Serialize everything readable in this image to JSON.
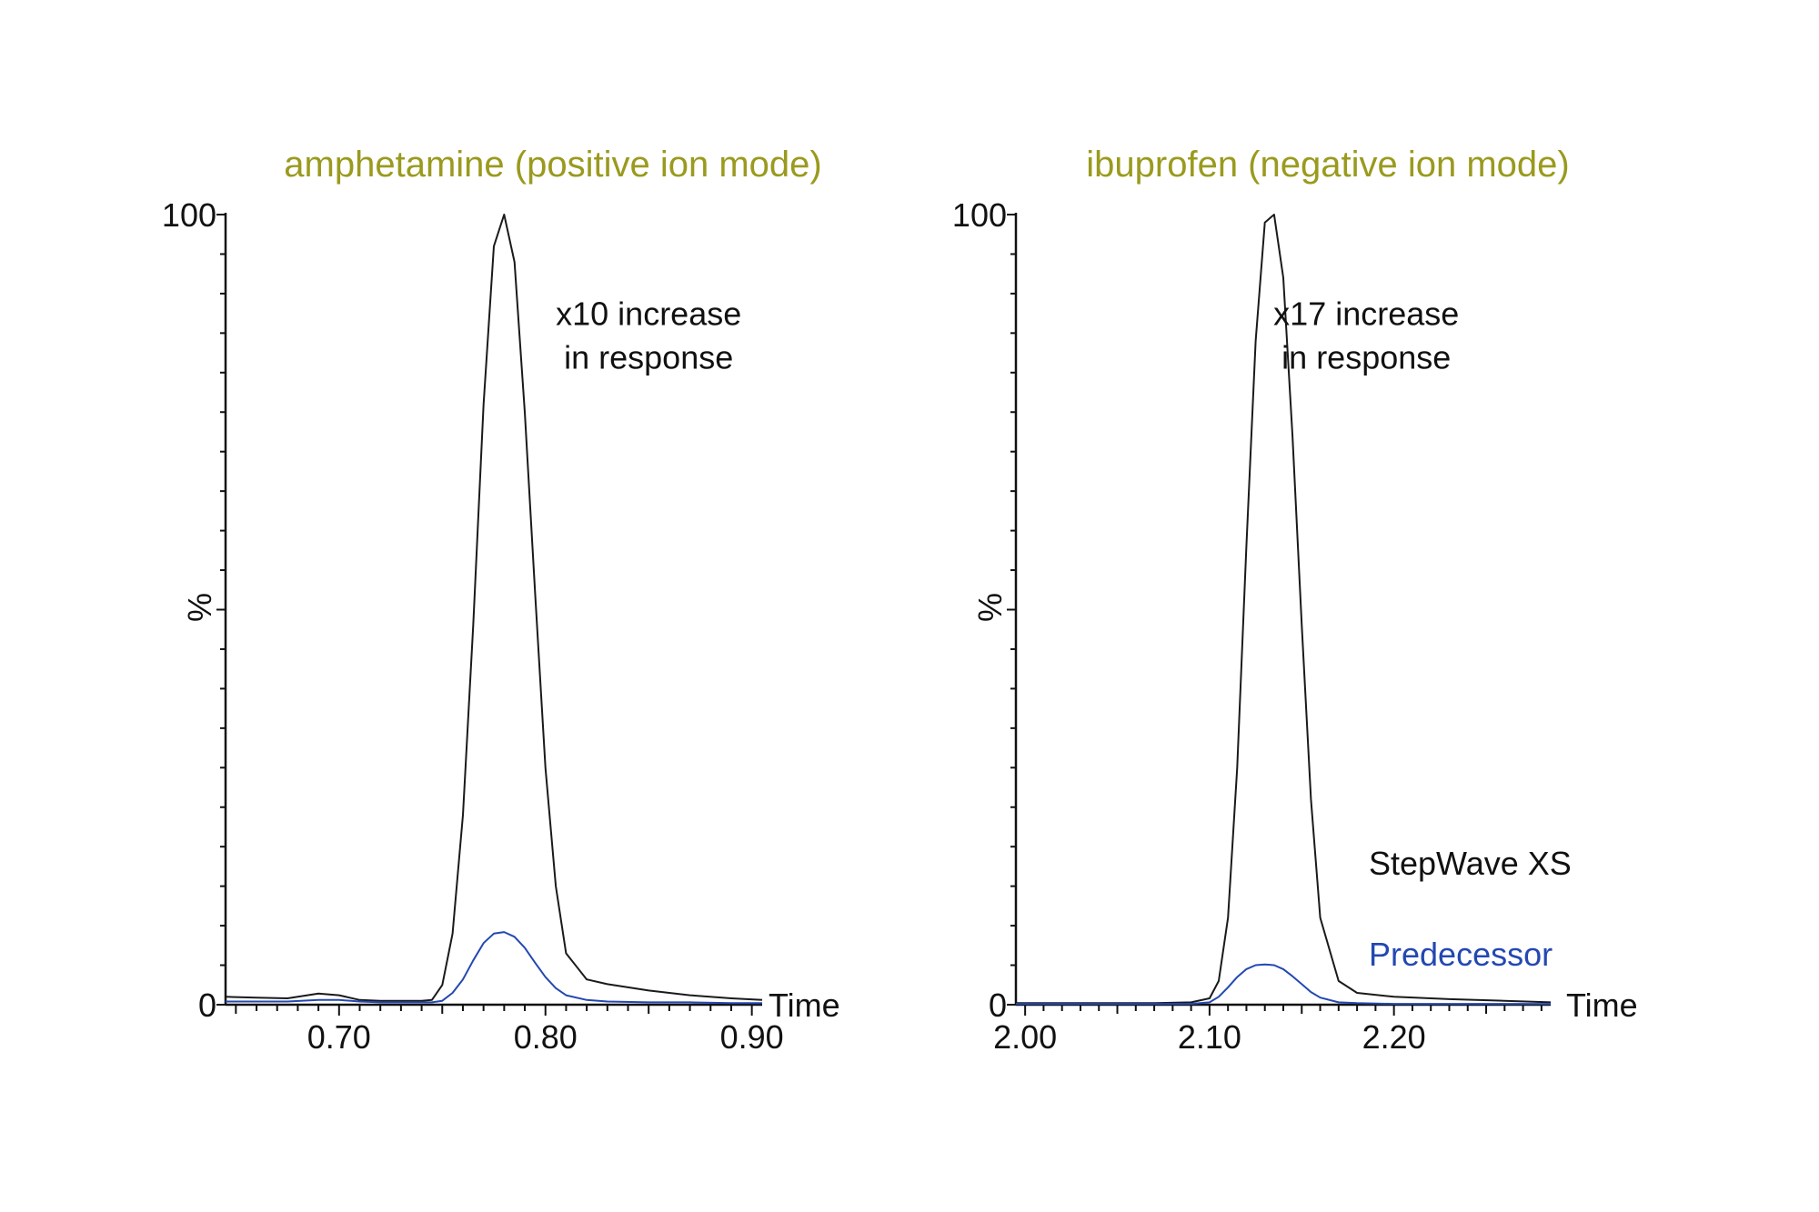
{
  "chart_data": [
    {
      "type": "line",
      "title": "amphetamine (positive ion mode)",
      "xlabel": "Time",
      "ylabel": "%",
      "xlim": [
        0.645,
        0.905
      ],
      "ylim": [
        0,
        100
      ],
      "xticks": [
        0.7,
        0.8,
        0.9
      ],
      "xtick_labels": [
        "0.70",
        "0.80",
        "0.90"
      ],
      "yticks": [
        0,
        100
      ],
      "ytick_labels": [
        "0",
        "100"
      ],
      "annotations": [
        {
          "text": "x10 increase",
          "x": 0.85,
          "y": 86
        },
        {
          "text": "in response",
          "x": 0.85,
          "y": 80.5
        }
      ],
      "series": [
        {
          "color": "#1a1a1a",
          "x": [
            0.645,
            0.66,
            0.675,
            0.69,
            0.7,
            0.71,
            0.72,
            0.73,
            0.74,
            0.745,
            0.75,
            0.755,
            0.76,
            0.765,
            0.77,
            0.775,
            0.78,
            0.785,
            0.79,
            0.795,
            0.8,
            0.805,
            0.81,
            0.82,
            0.83,
            0.85,
            0.87,
            0.89,
            0.905
          ],
          "y": [
            1.0,
            0.9,
            0.8,
            1.4,
            1.2,
            0.6,
            0.5,
            0.5,
            0.5,
            0.6,
            2.5,
            9,
            24,
            48,
            76,
            96,
            100,
            94,
            75,
            52,
            30,
            15,
            6.5,
            3.2,
            2.6,
            1.8,
            1.2,
            0.8,
            0.6
          ]
        },
        {
          "color": "#2348b2",
          "x": [
            0.645,
            0.66,
            0.675,
            0.69,
            0.7,
            0.71,
            0.72,
            0.73,
            0.74,
            0.745,
            0.75,
            0.755,
            0.76,
            0.765,
            0.77,
            0.775,
            0.78,
            0.785,
            0.79,
            0.795,
            0.8,
            0.805,
            0.81,
            0.82,
            0.83,
            0.85,
            0.87,
            0.89,
            0.905
          ],
          "y": [
            0.4,
            0.4,
            0.4,
            0.6,
            0.6,
            0.4,
            0.3,
            0.3,
            0.3,
            0.3,
            0.5,
            1.5,
            3.2,
            5.6,
            7.8,
            9.0,
            9.2,
            8.6,
            7.2,
            5.3,
            3.5,
            2.1,
            1.2,
            0.6,
            0.4,
            0.3,
            0.3,
            0.2,
            0.2
          ]
        }
      ]
    },
    {
      "type": "line",
      "title": "ibuprofen (negative ion mode)",
      "xlabel": "Time",
      "ylabel": "%",
      "xlim": [
        1.995,
        2.285
      ],
      "ylim": [
        0,
        100
      ],
      "xticks": [
        2.0,
        2.1,
        2.2
      ],
      "xtick_labels": [
        "2.00",
        "2.10",
        "2.20"
      ],
      "yticks": [
        0,
        100
      ],
      "ytick_labels": [
        "0",
        "100"
      ],
      "annotations": [
        {
          "text": "x17 increase",
          "x": 2.185,
          "y": 86
        },
        {
          "text": "in response",
          "x": 2.185,
          "y": 80.5
        }
      ],
      "legend_position": "bottom-right",
      "legend": [
        {
          "text": "StepWave XS",
          "color": "#111111"
        },
        {
          "text": "Predecessor",
          "color": "#2348b2"
        }
      ],
      "series": [
        {
          "color": "#1a1a1a",
          "x": [
            1.995,
            2.03,
            2.07,
            2.09,
            2.1,
            2.105,
            2.11,
            2.115,
            2.12,
            2.125,
            2.13,
            2.135,
            2.14,
            2.145,
            2.15,
            2.155,
            2.16,
            2.17,
            2.18,
            2.2,
            2.23,
            2.26,
            2.285
          ],
          "y": [
            0.2,
            0.2,
            0.2,
            0.3,
            0.8,
            3,
            11,
            30,
            58,
            84,
            99,
            100,
            92,
            72,
            48,
            26,
            11,
            3,
            1.5,
            1.0,
            0.7,
            0.5,
            0.3
          ]
        },
        {
          "color": "#2348b2",
          "x": [
            1.995,
            2.03,
            2.07,
            2.09,
            2.1,
            2.105,
            2.11,
            2.115,
            2.12,
            2.125,
            2.13,
            2.135,
            2.14,
            2.145,
            2.15,
            2.155,
            2.16,
            2.17,
            2.18,
            2.2,
            2.23,
            2.26,
            2.285
          ],
          "y": [
            0.1,
            0.1,
            0.1,
            0.1,
            0.3,
            1.0,
            2.2,
            3.5,
            4.5,
            5.0,
            5.1,
            5.0,
            4.5,
            3.6,
            2.6,
            1.6,
            0.9,
            0.3,
            0.2,
            0.1,
            0.1,
            0.1,
            0.1
          ]
        }
      ]
    }
  ]
}
